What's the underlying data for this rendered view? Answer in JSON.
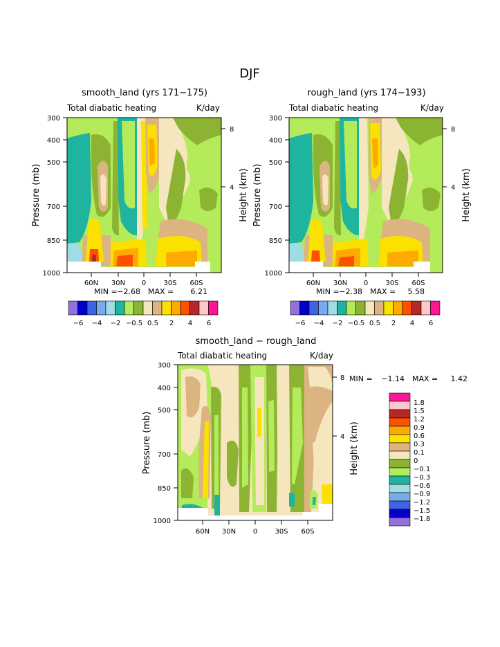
{
  "figure_title": "DJF",
  "colors": {
    "levels_top": [
      "#9370db",
      "#0000c8",
      "#3c64e6",
      "#78aaf0",
      "#a0dce6",
      "#1eb4a0",
      "#b4eb5a",
      "#8cb432",
      "#f5e6be",
      "#dcb482",
      "#fae100",
      "#ffaa00",
      "#ff5000",
      "#b42828",
      "#ffc8c8",
      "#ff1493"
    ],
    "levels_diff": [
      "#9370db",
      "#0000c8",
      "#3c64e6",
      "#78aaf0",
      "#a0dce6",
      "#1eb4a0",
      "#b4eb5a",
      "#8cb432",
      "#f5e6be",
      "#dcb482",
      "#fae100",
      "#ffaa00",
      "#ff5000",
      "#b42828",
      "#ffc8c8",
      "#ff1493"
    ]
  },
  "chart_data": [
    {
      "type": "heatmap",
      "title": "smooth_land (yrs 171−175)",
      "subtitle": "Total diabatic heating",
      "units": "K/day",
      "ylabel": "Pressure (mb)",
      "y2label": "Height (km)",
      "yticks": [
        "300",
        "400",
        "500",
        "700",
        "850",
        "1000"
      ],
      "y2ticks": [
        "8",
        "4"
      ],
      "xticks": [
        "60N",
        "30N",
        "0",
        "30S",
        "60S"
      ],
      "min_label": "MIN =",
      "min_value": "−2.68",
      "max_label": "MAX =",
      "max_value": "6.21",
      "colorbar_labels": [
        "−6",
        "−4",
        "−2",
        "−0.5",
        "0.5",
        "2",
        "4",
        "6"
      ]
    },
    {
      "type": "heatmap",
      "title": "rough_land (yrs 174−193)",
      "subtitle": "Total diabatic heating",
      "units": "K/day",
      "ylabel": "Pressure (mb)",
      "y2label": "Height (km)",
      "yticks": [
        "300",
        "400",
        "500",
        "700",
        "850",
        "1000"
      ],
      "y2ticks": [
        "8",
        "4"
      ],
      "xticks": [
        "60N",
        "30N",
        "0",
        "30S",
        "60S"
      ],
      "min_label": "MIN =",
      "min_value": "−2.38",
      "max_label": "MAX =",
      "max_value": "5.58",
      "colorbar_labels": [
        "−6",
        "−4",
        "−2",
        "−0.5",
        "0.5",
        "2",
        "4",
        "6"
      ]
    },
    {
      "type": "heatmap",
      "title": "smooth_land − rough_land",
      "subtitle": "Total diabatic heating",
      "units": "K/day",
      "ylabel": "Pressure (mb)",
      "y2label": "Height (km)",
      "yticks": [
        "300",
        "400",
        "500",
        "700",
        "850",
        "1000"
      ],
      "y2ticks": [
        "8",
        "4"
      ],
      "xticks": [
        "60N",
        "30N",
        "0",
        "30S",
        "60S"
      ],
      "min_label": "MIN =",
      "min_value": "−1.14",
      "max_label": "MAX =",
      "max_value": "1.42",
      "colorbar_labels": [
        "1.8",
        "1.5",
        "1.2",
        "0.9",
        "0.6",
        "0.3",
        "0.1",
        "0",
        "−0.1",
        "−0.3",
        "−0.6",
        "−0.9",
        "−1.2",
        "−1.5",
        "−1.8"
      ]
    }
  ]
}
